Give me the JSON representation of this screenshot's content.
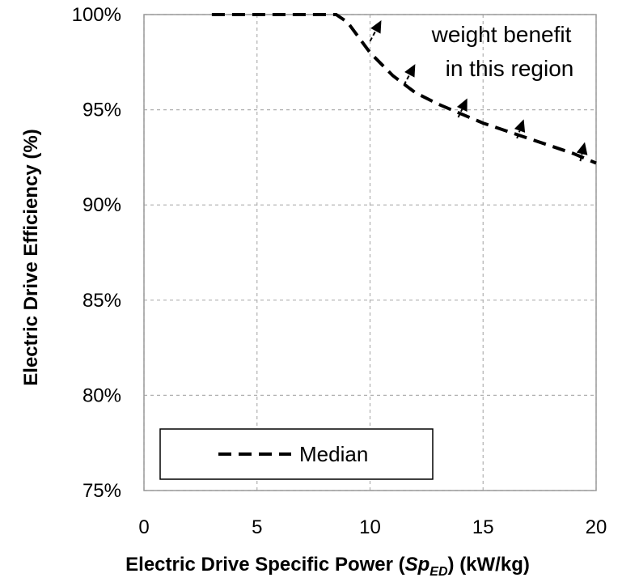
{
  "chart_data": {
    "type": "line",
    "xlabel_parts": {
      "before": "Electric Drive Specific Power (",
      "symbol": "Sp",
      "subscript": "ED",
      "after": ") (kW/kg)"
    },
    "ylabel": "Electric Drive Efficiency (%)",
    "xlim": [
      0,
      20
    ],
    "ylim": [
      75,
      100
    ],
    "x_ticks": [
      0,
      5,
      10,
      15,
      20
    ],
    "y_ticks": [
      75,
      80,
      85,
      90,
      95,
      100
    ],
    "x_tick_labels": [
      "0",
      "5",
      "10",
      "15",
      "20"
    ],
    "y_tick_labels": [
      "75%",
      "80%",
      "85%",
      "90%",
      "95%",
      "100%"
    ],
    "grid": true,
    "legend_position": "bottom-left",
    "series": [
      {
        "name": "Median",
        "style": "dashed",
        "color": "#000000",
        "x": [
          3,
          5,
          7,
          8.5,
          9,
          10,
          11,
          12,
          13,
          14,
          15,
          16,
          17,
          18,
          19,
          20
        ],
        "y": [
          100,
          100,
          100,
          100,
          99.6,
          98.0,
          96.8,
          95.9,
          95.3,
          94.8,
          94.3,
          93.9,
          93.5,
          93.1,
          92.7,
          92.2
        ]
      }
    ],
    "annotation": {
      "lines": [
        "weight benefit",
        "in this region"
      ]
    },
    "arrows": [
      {
        "from": [
          10.0,
          98.6
        ],
        "to": [
          10.5,
          99.7
        ]
      },
      {
        "from": [
          11.5,
          96.3
        ],
        "to": [
          12.0,
          97.4
        ]
      },
      {
        "from": [
          13.9,
          94.6
        ],
        "to": [
          14.3,
          95.6
        ]
      },
      {
        "from": [
          16.5,
          93.5
        ],
        "to": [
          16.8,
          94.5
        ]
      },
      {
        "from": [
          19.3,
          92.3
        ],
        "to": [
          19.5,
          93.3
        ]
      }
    ]
  }
}
